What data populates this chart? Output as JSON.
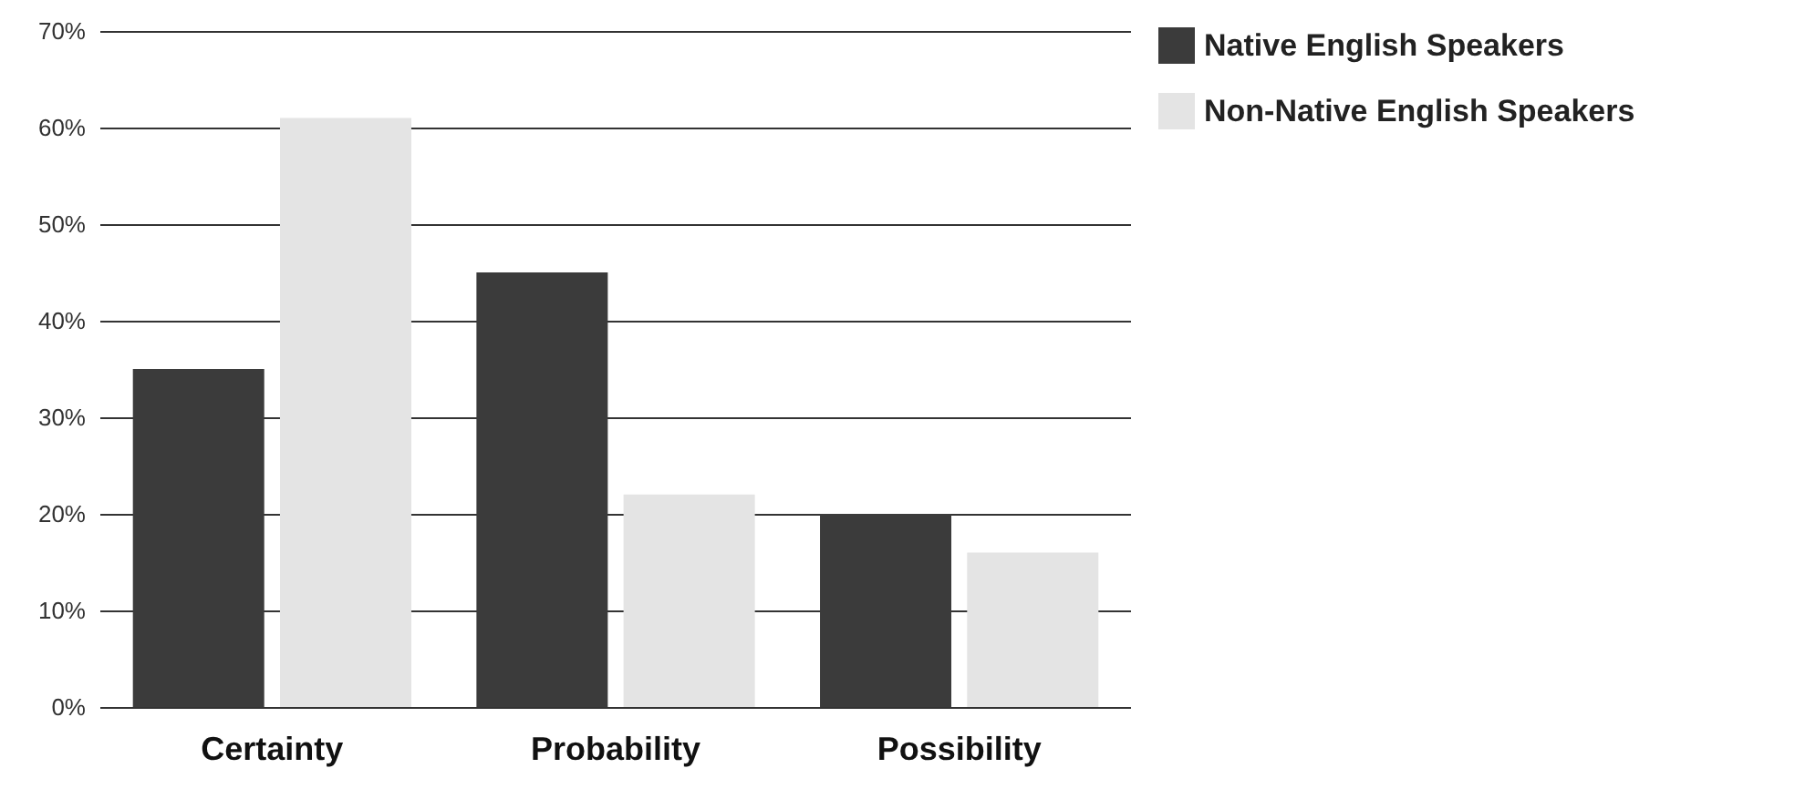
{
  "chart_data": {
    "type": "bar",
    "categories": [
      "Certainty",
      "Probability",
      "Possibility"
    ],
    "series": [
      {
        "name": "Native English Speakers",
        "color": "#3b3b3b",
        "values": [
          35,
          45,
          20
        ]
      },
      {
        "name": "Non-Native English Speakers",
        "color": "#e4e4e4",
        "values": [
          61,
          22,
          16
        ]
      }
    ],
    "ylim": [
      0,
      70
    ],
    "yticks": [
      {
        "value": 0,
        "label": "0%"
      },
      {
        "value": 10,
        "label": "10%"
      },
      {
        "value": 20,
        "label": "20%"
      },
      {
        "value": 30,
        "label": "30%"
      },
      {
        "value": 40,
        "label": "40%"
      },
      {
        "value": 50,
        "label": "50%"
      },
      {
        "value": 60,
        "label": "60%"
      },
      {
        "value": 70,
        "label": "70%"
      }
    ],
    "grid": "y",
    "legend": "top right"
  }
}
